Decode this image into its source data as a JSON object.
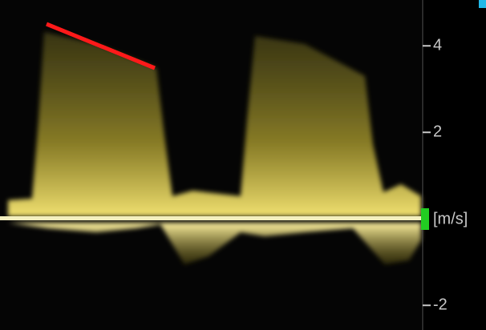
{
  "scale": {
    "unit": "[m/s]",
    "ticks": [
      4,
      2,
      -2
    ],
    "ylim": [
      -2.57,
      5.06
    ]
  }
}
